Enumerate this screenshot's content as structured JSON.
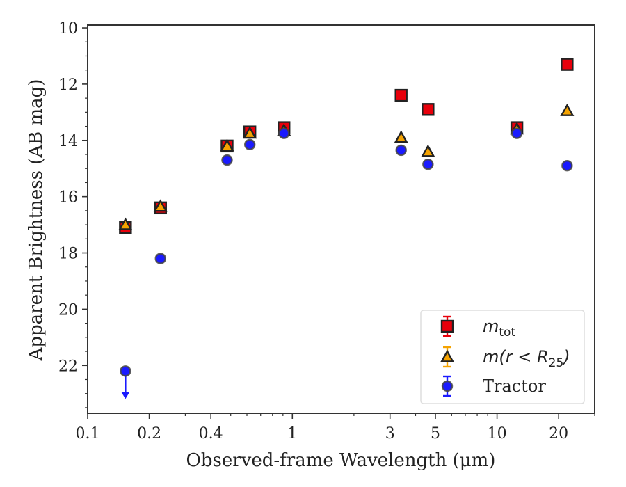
{
  "chart_data": {
    "type": "scatter",
    "xlabel": "Observed-frame Wavelength (μm)",
    "ylabel": "Apparent Brightness (AB mag)",
    "xscale": "log",
    "xlim": [
      0.1,
      30
    ],
    "ylim": [
      23.7,
      9.9
    ],
    "y_inverted": true,
    "x_ticks": [
      {
        "value": 0.1,
        "label": "0.1"
      },
      {
        "value": 0.2,
        "label": "0.2"
      },
      {
        "value": 0.4,
        "label": "0.4"
      },
      {
        "value": 1,
        "label": "1"
      },
      {
        "value": 3,
        "label": "3"
      },
      {
        "value": 5,
        "label": "5"
      },
      {
        "value": 10,
        "label": "10"
      },
      {
        "value": 20,
        "label": "20"
      }
    ],
    "y_ticks": [
      {
        "value": 10,
        "label": "10"
      },
      {
        "value": 12,
        "label": "12"
      },
      {
        "value": 14,
        "label": "14"
      },
      {
        "value": 16,
        "label": "16"
      },
      {
        "value": 18,
        "label": "18"
      },
      {
        "value": 20,
        "label": "20"
      },
      {
        "value": 22,
        "label": "22"
      }
    ],
    "grid": false,
    "legend_position": "lower-right",
    "series": [
      {
        "name": "m_tot",
        "legend_main": "m",
        "legend_sub": "tot",
        "marker": "square",
        "color": "#e8000b",
        "edge": "#222222",
        "points": [
          {
            "x": 0.153,
            "y": 17.1
          },
          {
            "x": 0.227,
            "y": 16.4
          },
          {
            "x": 0.48,
            "y": 14.2
          },
          {
            "x": 0.62,
            "y": 13.7
          },
          {
            "x": 0.91,
            "y": 13.55
          },
          {
            "x": 3.4,
            "y": 12.4
          },
          {
            "x": 4.6,
            "y": 12.9
          },
          {
            "x": 12.5,
            "y": 13.55
          },
          {
            "x": 22.0,
            "y": 11.3
          }
        ]
      },
      {
        "name": "m(r < R25)",
        "legend_main": "m(r < R",
        "legend_sub": "25",
        "legend_close": ")",
        "marker": "triangle",
        "color": "#f5a300",
        "edge": "#222222",
        "points": [
          {
            "x": 0.153,
            "y": 17.0
          },
          {
            "x": 0.227,
            "y": 16.35
          },
          {
            "x": 0.48,
            "y": 14.2
          },
          {
            "x": 0.62,
            "y": 13.75
          },
          {
            "x": 0.91,
            "y": 13.65
          },
          {
            "x": 3.4,
            "y": 13.9
          },
          {
            "x": 4.6,
            "y": 14.4
          },
          {
            "x": 12.5,
            "y": 13.6
          },
          {
            "x": 22.0,
            "y": 12.95
          }
        ]
      },
      {
        "name": "Tractor",
        "legend_main": "Tractor",
        "marker": "circle",
        "color": "#1a1aff",
        "edge": "#444444",
        "points": [
          {
            "x": 0.153,
            "y": 22.2,
            "upper_limit": true
          },
          {
            "x": 0.227,
            "y": 18.2
          },
          {
            "x": 0.48,
            "y": 14.7
          },
          {
            "x": 0.62,
            "y": 14.15
          },
          {
            "x": 0.91,
            "y": 13.75
          },
          {
            "x": 3.4,
            "y": 14.35
          },
          {
            "x": 4.6,
            "y": 14.85
          },
          {
            "x": 12.5,
            "y": 13.75
          },
          {
            "x": 22.0,
            "y": 14.9
          }
        ]
      }
    ]
  }
}
